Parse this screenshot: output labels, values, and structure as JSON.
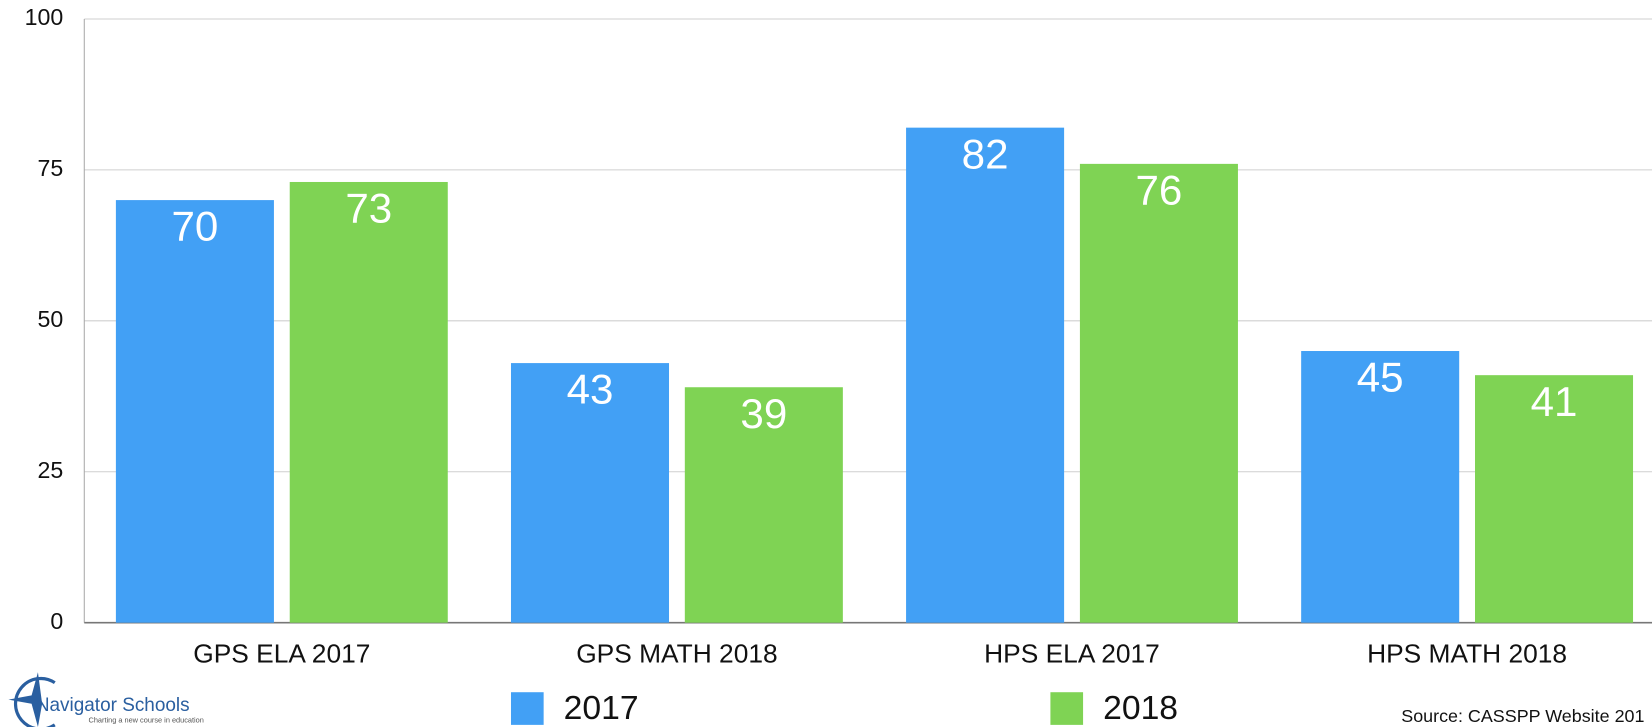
{
  "chart_data": {
    "type": "bar",
    "categories": [
      "GPS ELA 2017",
      "GPS MATH 2018",
      "HPS ELA 2017",
      "HPS MATH 2018"
    ],
    "series": [
      {
        "name": "2017",
        "color": "#42a0f5",
        "values": [
          70,
          43,
          82,
          45
        ]
      },
      {
        "name": "2018",
        "color": "#7fd354",
        "values": [
          73,
          39,
          76,
          41
        ]
      }
    ],
    "ylim": [
      0,
      100
    ],
    "yticks": [
      0,
      25,
      50,
      75,
      100
    ],
    "grid": true,
    "legend": "bottom",
    "logo": {
      "name": "Navigator Schools",
      "tagline": "Charting a new course in education"
    },
    "source": "Source: CASSPP Website 201"
  }
}
